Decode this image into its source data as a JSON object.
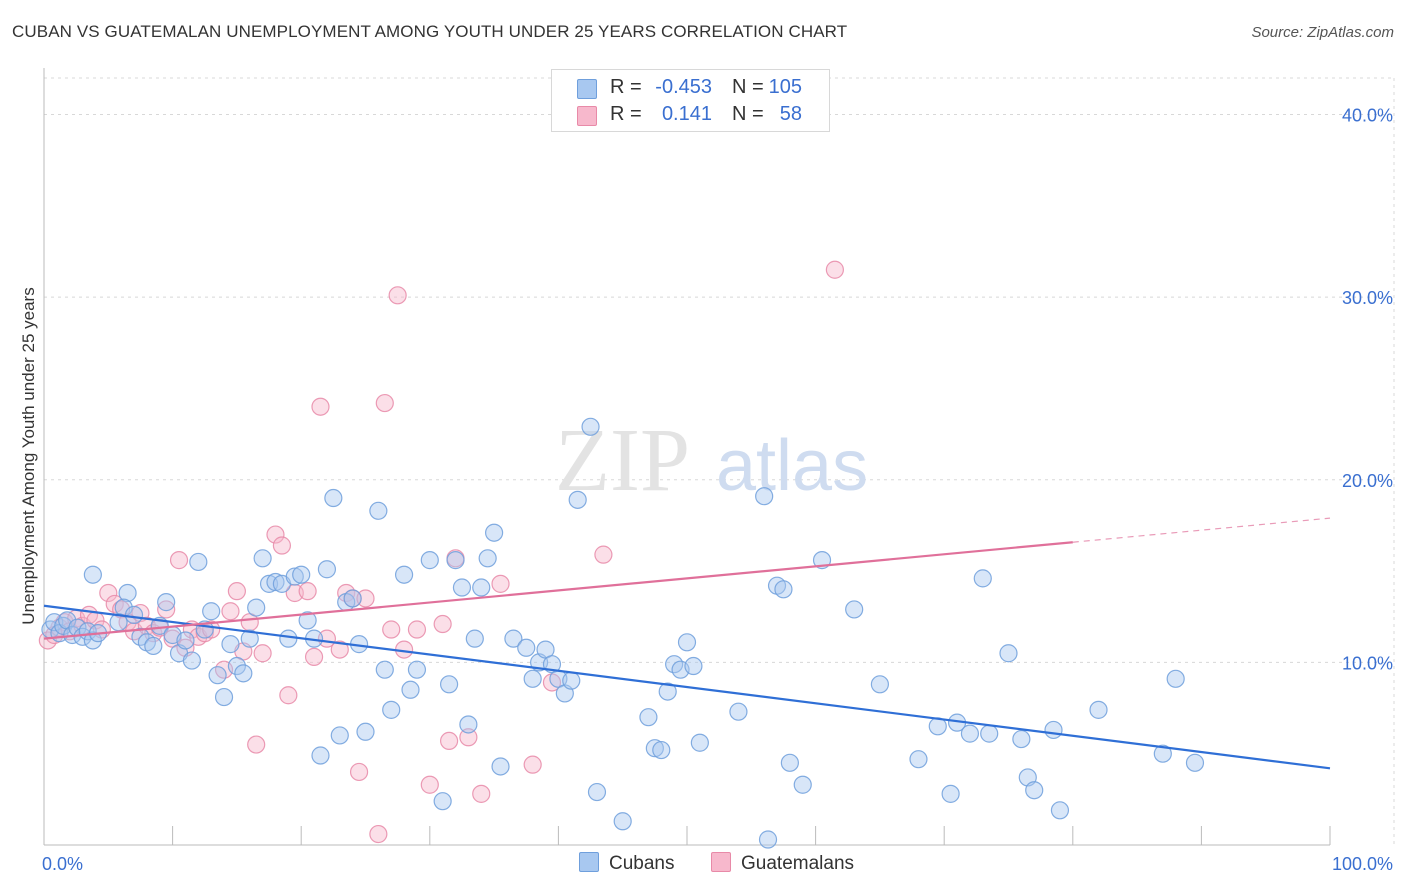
{
  "header": {
    "title": "CUBAN VS GUATEMALAN UNEMPLOYMENT AMONG YOUTH UNDER 25 YEARS CORRELATION CHART",
    "source": "Source: ZipAtlas.com"
  },
  "watermark": {
    "zip": "ZIP",
    "atlas": "atlas"
  },
  "legend": {
    "rows": [
      {
        "r_label": "R =",
        "r_value": "-0.453",
        "n_label": "N =",
        "n_value": "105"
      },
      {
        "r_label": "R =",
        "r_value": "0.141",
        "n_label": "N =",
        "n_value": "58"
      }
    ]
  },
  "bottom_legend": {
    "cubans": "Cubans",
    "guatemalans": "Guatemalans"
  },
  "colors": {
    "cubans_fill": "#a8c8f0",
    "cubans_stroke": "#6f9fdc",
    "cubans_line": "#2f6fd6",
    "guatemalans_fill": "#f7b8cc",
    "guatemalans_stroke": "#e88aa8",
    "guatemalans_line": "#e0709a",
    "tick_label": "#3a6fd0",
    "grid": "#d8d8d8"
  },
  "chart_data": {
    "type": "scatter",
    "title": "CUBAN VS GUATEMALAN UNEMPLOYMENT AMONG YOUTH UNDER 25 YEARS CORRELATION CHART",
    "xlabel": "",
    "ylabel": "Unemployment Among Youth under 25 years",
    "xlim": [
      0,
      100
    ],
    "ylim": [
      0,
      42
    ],
    "x_tick_labels": [
      "0.0%",
      "100.0%"
    ],
    "y_ticks": [
      10,
      20,
      30,
      40
    ],
    "y_tick_labels": [
      "10.0%",
      "20.0%",
      "30.0%",
      "40.0%"
    ],
    "legend_position": "top-center",
    "series": [
      {
        "name": "Cubans",
        "r": -0.453,
        "n": 105,
        "trend": {
          "x": [
            0,
            100
          ],
          "y": [
            13.1,
            4.2
          ],
          "dashed_from": null
        },
        "points": [
          {
            "x": 0.5,
            "y": 11.8
          },
          {
            "x": 0.8,
            "y": 12.2
          },
          {
            "x": 1.2,
            "y": 11.6
          },
          {
            "x": 1.5,
            "y": 12.0
          },
          {
            "x": 1.8,
            "y": 12.3
          },
          {
            "x": 2.2,
            "y": 11.5
          },
          {
            "x": 2.6,
            "y": 11.9
          },
          {
            "x": 3.0,
            "y": 11.4
          },
          {
            "x": 3.4,
            "y": 11.7
          },
          {
            "x": 3.8,
            "y": 11.2
          },
          {
            "x": 4.2,
            "y": 11.6
          },
          {
            "x": 3.8,
            "y": 14.8
          },
          {
            "x": 6.5,
            "y": 13.8
          },
          {
            "x": 6.2,
            "y": 13.0
          },
          {
            "x": 5.8,
            "y": 12.2
          },
          {
            "x": 7.0,
            "y": 12.6
          },
          {
            "x": 7.5,
            "y": 11.4
          },
          {
            "x": 8.0,
            "y": 11.1
          },
          {
            "x": 8.5,
            "y": 10.9
          },
          {
            "x": 9.0,
            "y": 12.0
          },
          {
            "x": 9.5,
            "y": 13.3
          },
          {
            "x": 10.0,
            "y": 11.5
          },
          {
            "x": 10.5,
            "y": 10.5
          },
          {
            "x": 11.0,
            "y": 11.2
          },
          {
            "x": 11.5,
            "y": 10.1
          },
          {
            "x": 12.0,
            "y": 15.5
          },
          {
            "x": 12.5,
            "y": 11.8
          },
          {
            "x": 13.0,
            "y": 12.8
          },
          {
            "x": 13.5,
            "y": 9.3
          },
          {
            "x": 14.0,
            "y": 8.1
          },
          {
            "x": 14.5,
            "y": 11.0
          },
          {
            "x": 15.0,
            "y": 9.8
          },
          {
            "x": 15.5,
            "y": 9.4
          },
          {
            "x": 16.0,
            "y": 11.3
          },
          {
            "x": 16.5,
            "y": 13.0
          },
          {
            "x": 17.0,
            "y": 15.7
          },
          {
            "x": 17.5,
            "y": 14.3
          },
          {
            "x": 18.0,
            "y": 14.4
          },
          {
            "x": 18.5,
            "y": 14.3
          },
          {
            "x": 19.0,
            "y": 11.3
          },
          {
            "x": 19.5,
            "y": 14.7
          },
          {
            "x": 20.0,
            "y": 14.8
          },
          {
            "x": 20.5,
            "y": 12.3
          },
          {
            "x": 21.0,
            "y": 11.3
          },
          {
            "x": 21.5,
            "y": 4.9
          },
          {
            "x": 22.0,
            "y": 15.1
          },
          {
            "x": 22.5,
            "y": 19.0
          },
          {
            "x": 23.0,
            "y": 6.0
          },
          {
            "x": 23.5,
            "y": 13.3
          },
          {
            "x": 24.0,
            "y": 13.5
          },
          {
            "x": 24.5,
            "y": 11.0
          },
          {
            "x": 25.0,
            "y": 6.2
          },
          {
            "x": 26.0,
            "y": 18.3
          },
          {
            "x": 26.5,
            "y": 9.6
          },
          {
            "x": 27.0,
            "y": 7.4
          },
          {
            "x": 28.0,
            "y": 14.8
          },
          {
            "x": 28.5,
            "y": 8.5
          },
          {
            "x": 29.0,
            "y": 9.6
          },
          {
            "x": 30.0,
            "y": 15.6
          },
          {
            "x": 31.0,
            "y": 2.4
          },
          {
            "x": 31.5,
            "y": 8.8
          },
          {
            "x": 32.0,
            "y": 15.6
          },
          {
            "x": 32.5,
            "y": 14.1
          },
          {
            "x": 33.0,
            "y": 6.6
          },
          {
            "x": 33.5,
            "y": 11.3
          },
          {
            "x": 34.0,
            "y": 14.1
          },
          {
            "x": 34.5,
            "y": 15.7
          },
          {
            "x": 35.0,
            "y": 17.1
          },
          {
            "x": 35.5,
            "y": 4.3
          },
          {
            "x": 36.5,
            "y": 11.3
          },
          {
            "x": 37.5,
            "y": 10.8
          },
          {
            "x": 38.0,
            "y": 9.1
          },
          {
            "x": 38.5,
            "y": 10.0
          },
          {
            "x": 39.0,
            "y": 10.7
          },
          {
            "x": 39.5,
            "y": 9.9
          },
          {
            "x": 40.0,
            "y": 9.1
          },
          {
            "x": 40.5,
            "y": 8.3
          },
          {
            "x": 41.0,
            "y": 9.0
          },
          {
            "x": 41.5,
            "y": 18.9
          },
          {
            "x": 42.5,
            "y": 22.9
          },
          {
            "x": 43.0,
            "y": 2.9
          },
          {
            "x": 45.0,
            "y": 1.3
          },
          {
            "x": 47.0,
            "y": 7.0
          },
          {
            "x": 47.5,
            "y": 5.3
          },
          {
            "x": 48.0,
            "y": 5.2
          },
          {
            "x": 48.5,
            "y": 8.4
          },
          {
            "x": 49.0,
            "y": 9.9
          },
          {
            "x": 49.5,
            "y": 9.6
          },
          {
            "x": 50.0,
            "y": 11.1
          },
          {
            "x": 50.5,
            "y": 9.8
          },
          {
            "x": 51.0,
            "y": 5.6
          },
          {
            "x": 54.0,
            "y": 7.3
          },
          {
            "x": 56.0,
            "y": 19.1
          },
          {
            "x": 57.0,
            "y": 14.2
          },
          {
            "x": 57.5,
            "y": 14.0
          },
          {
            "x": 58.0,
            "y": 4.5
          },
          {
            "x": 59.0,
            "y": 3.3
          },
          {
            "x": 60.5,
            "y": 15.6
          },
          {
            "x": 63.0,
            "y": 12.9
          },
          {
            "x": 65.0,
            "y": 8.8
          },
          {
            "x": 68.0,
            "y": 4.7
          },
          {
            "x": 69.5,
            "y": 6.5
          },
          {
            "x": 70.5,
            "y": 2.8
          },
          {
            "x": 71.0,
            "y": 6.7
          },
          {
            "x": 72.0,
            "y": 6.1
          },
          {
            "x": 73.0,
            "y": 14.6
          },
          {
            "x": 73.5,
            "y": 6.1
          },
          {
            "x": 75.0,
            "y": 10.5
          },
          {
            "x": 76.0,
            "y": 5.8
          },
          {
            "x": 76.5,
            "y": 3.7
          },
          {
            "x": 77.0,
            "y": 3.0
          },
          {
            "x": 78.5,
            "y": 6.3
          },
          {
            "x": 79.0,
            "y": 1.9
          },
          {
            "x": 82.0,
            "y": 7.4
          },
          {
            "x": 87.0,
            "y": 5.0
          },
          {
            "x": 88.0,
            "y": 9.1
          },
          {
            "x": 89.5,
            "y": 4.5
          },
          {
            "x": 56.3,
            "y": 0.3
          }
        ]
      },
      {
        "name": "Guatemalans",
        "r": 0.141,
        "n": 58,
        "trend": {
          "x": [
            0,
            100
          ],
          "y": [
            11.3,
            17.9
          ],
          "dashed_from": 80
        },
        "points": [
          {
            "x": 0.3,
            "y": 11.2
          },
          {
            "x": 0.8,
            "y": 11.5
          },
          {
            "x": 1.2,
            "y": 11.9
          },
          {
            "x": 1.6,
            "y": 12.2
          },
          {
            "x": 2.0,
            "y": 11.7
          },
          {
            "x": 2.5,
            "y": 12.4
          },
          {
            "x": 3.0,
            "y": 12.0
          },
          {
            "x": 3.5,
            "y": 12.6
          },
          {
            "x": 4.0,
            "y": 12.3
          },
          {
            "x": 4.5,
            "y": 11.8
          },
          {
            "x": 5.0,
            "y": 13.8
          },
          {
            "x": 5.5,
            "y": 13.2
          },
          {
            "x": 6.0,
            "y": 12.9
          },
          {
            "x": 6.5,
            "y": 12.2
          },
          {
            "x": 7.0,
            "y": 11.7
          },
          {
            "x": 7.5,
            "y": 12.7
          },
          {
            "x": 8.0,
            "y": 12.0
          },
          {
            "x": 8.5,
            "y": 11.6
          },
          {
            "x": 9.0,
            "y": 11.9
          },
          {
            "x": 9.5,
            "y": 12.9
          },
          {
            "x": 10.0,
            "y": 11.3
          },
          {
            "x": 10.5,
            "y": 15.6
          },
          {
            "x": 11.0,
            "y": 10.8
          },
          {
            "x": 11.5,
            "y": 11.8
          },
          {
            "x": 12.0,
            "y": 11.4
          },
          {
            "x": 12.5,
            "y": 11.6
          },
          {
            "x": 13.0,
            "y": 11.8
          },
          {
            "x": 14.0,
            "y": 9.6
          },
          {
            "x": 14.5,
            "y": 12.8
          },
          {
            "x": 15.0,
            "y": 13.9
          },
          {
            "x": 15.5,
            "y": 10.6
          },
          {
            "x": 16.0,
            "y": 12.2
          },
          {
            "x": 16.5,
            "y": 5.5
          },
          {
            "x": 17.0,
            "y": 10.5
          },
          {
            "x": 18.0,
            "y": 17.0
          },
          {
            "x": 18.5,
            "y": 16.4
          },
          {
            "x": 19.0,
            "y": 8.2
          },
          {
            "x": 19.5,
            "y": 13.8
          },
          {
            "x": 20.5,
            "y": 13.9
          },
          {
            "x": 21.0,
            "y": 10.3
          },
          {
            "x": 21.5,
            "y": 24.0
          },
          {
            "x": 22.0,
            "y": 11.3
          },
          {
            "x": 23.0,
            "y": 10.7
          },
          {
            "x": 23.5,
            "y": 13.8
          },
          {
            "x": 24.0,
            "y": 13.5
          },
          {
            "x": 25.0,
            "y": 13.5
          },
          {
            "x": 26.0,
            "y": 0.6
          },
          {
            "x": 26.5,
            "y": 24.2
          },
          {
            "x": 27.0,
            "y": 11.8
          },
          {
            "x": 27.5,
            "y": 30.1
          },
          {
            "x": 28.0,
            "y": 10.7
          },
          {
            "x": 29.0,
            "y": 11.8
          },
          {
            "x": 30.0,
            "y": 3.3
          },
          {
            "x": 31.0,
            "y": 12.1
          },
          {
            "x": 31.5,
            "y": 5.7
          },
          {
            "x": 32.0,
            "y": 15.7
          },
          {
            "x": 33.0,
            "y": 5.9
          },
          {
            "x": 34.0,
            "y": 2.8
          },
          {
            "x": 35.5,
            "y": 14.3
          },
          {
            "x": 38.0,
            "y": 4.4
          },
          {
            "x": 39.5,
            "y": 8.9
          },
          {
            "x": 43.5,
            "y": 15.9
          },
          {
            "x": 61.5,
            "y": 31.5
          },
          {
            "x": 24.5,
            "y": 4.0
          }
        ]
      }
    ]
  }
}
